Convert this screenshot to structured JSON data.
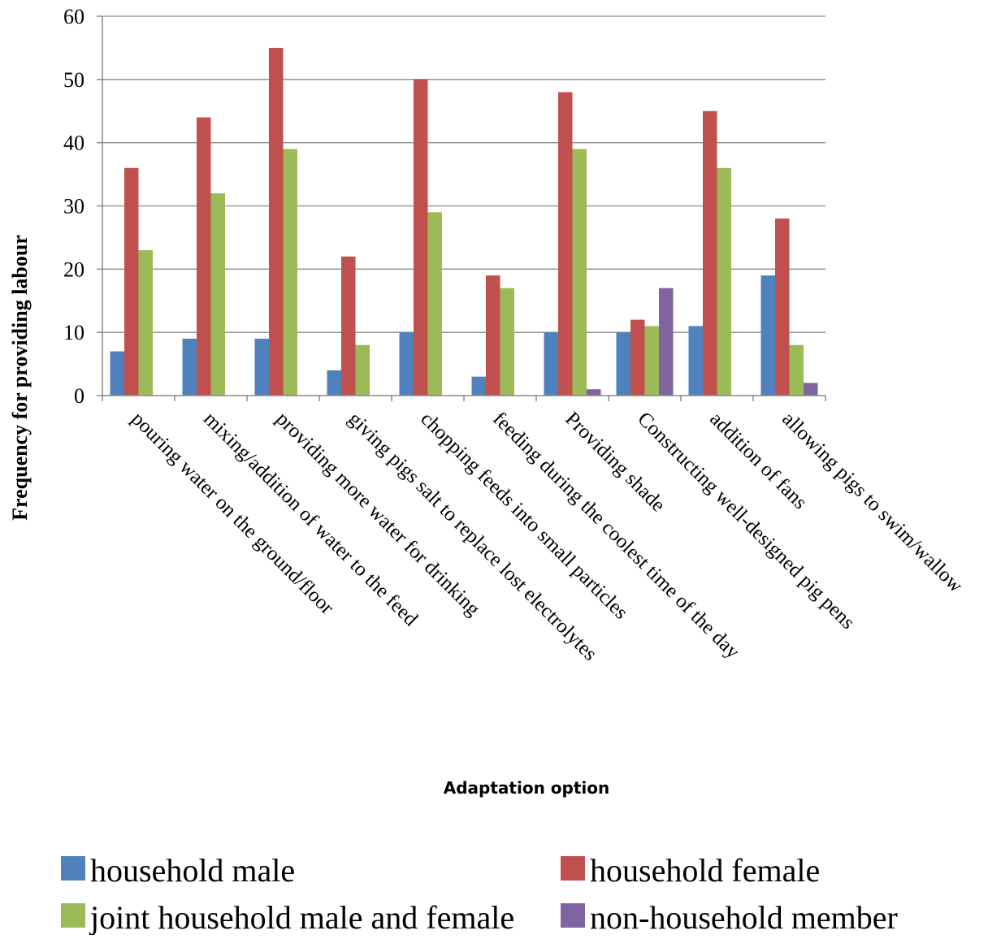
{
  "chart_data": {
    "type": "bar",
    "title": "",
    "xlabel": "Adaptation option",
    "ylabel": "Frequency for providing labour",
    "ylim": [
      0,
      60
    ],
    "yticks": [
      0,
      10,
      20,
      30,
      40,
      50,
      60
    ],
    "grid": true,
    "legend_position": "bottom",
    "categories": [
      "pouring water on the ground/floor",
      "mixing/addition of water to the feed",
      "providing more water for drinking",
      "giving pigs salt to replace lost electrolytes",
      "chopping feeds into small particles",
      "feeding during the coolest time of the day",
      "Providing shade",
      "Constructing well-designed pig pens",
      "addition of fans",
      "allowing pigs to swim/wallow"
    ],
    "series": [
      {
        "name": "household male",
        "color": "#4F81BD",
        "values": [
          7,
          9,
          9,
          4,
          10,
          3,
          10,
          10,
          11,
          19
        ]
      },
      {
        "name": "household female",
        "color": "#C0504D",
        "values": [
          36,
          44,
          55,
          22,
          50,
          19,
          48,
          12,
          45,
          28
        ]
      },
      {
        "name": "joint household male and female",
        "color": "#9BBB59",
        "values": [
          23,
          32,
          39,
          8,
          29,
          17,
          39,
          11,
          36,
          8
        ]
      },
      {
        "name": "non-household member",
        "color": "#8064A2",
        "values": [
          0,
          0,
          0,
          0,
          0,
          0,
          1,
          17,
          0,
          2
        ]
      }
    ]
  }
}
